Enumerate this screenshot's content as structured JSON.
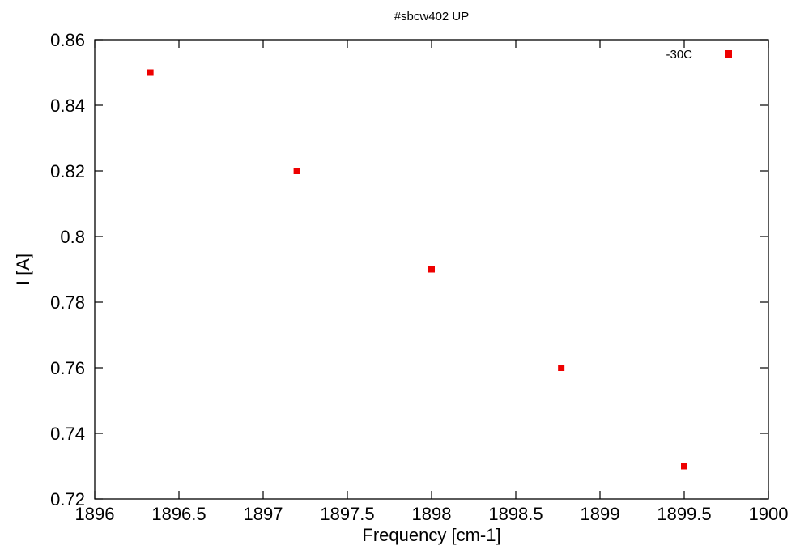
{
  "chart_data": {
    "type": "scatter",
    "title": "#sbcw402 UP",
    "xlabel": "Frequency [cm-1]",
    "ylabel": "I [A]",
    "xlim": [
      1896,
      1900
    ],
    "ylim": [
      0.72,
      0.86
    ],
    "x_ticks": [
      1896,
      1896.5,
      1897,
      1897.5,
      1898,
      1898.5,
      1899,
      1899.5,
      1900
    ],
    "x_tick_labels": [
      "1896",
      "1896.5",
      "1897",
      "1897.5",
      "1898",
      "1898.5",
      "1899",
      "1899.5",
      "1900"
    ],
    "y_ticks": [
      0.72,
      0.74,
      0.76,
      0.78,
      0.8,
      0.82,
      0.84,
      0.86
    ],
    "y_tick_labels": [
      "0.72",
      "0.74",
      "0.76",
      "0.78",
      "0.8",
      "0.82",
      "0.84",
      "0.86"
    ],
    "grid": false,
    "legend_position": "top-right",
    "series": [
      {
        "name": "-30C",
        "color": "#ee0000",
        "marker": "square",
        "x": [
          1896.33,
          1897.2,
          1898.0,
          1898.77,
          1899.5
        ],
        "y": [
          0.85,
          0.82,
          0.79,
          0.76,
          0.73
        ]
      }
    ]
  }
}
